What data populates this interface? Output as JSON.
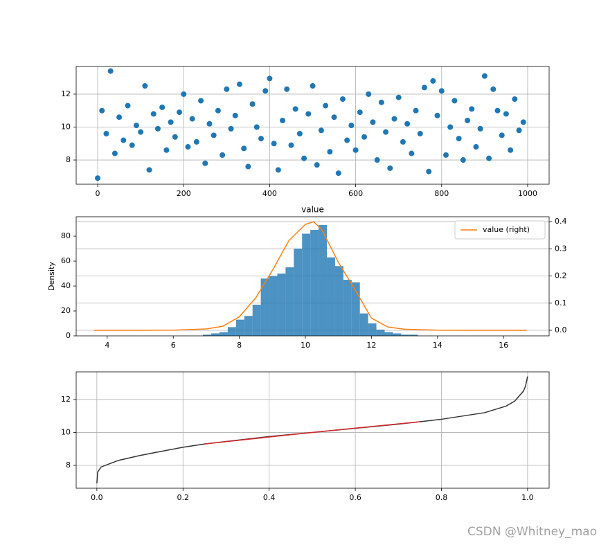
{
  "chart_data": [
    {
      "type": "scatter",
      "color": "#1f77b4",
      "grid": true,
      "x": [
        0,
        10,
        20,
        30,
        40,
        50,
        60,
        70,
        80,
        90,
        100,
        110,
        120,
        130,
        140,
        150,
        160,
        170,
        180,
        190,
        200,
        210,
        220,
        230,
        240,
        250,
        260,
        270,
        280,
        290,
        300,
        310,
        320,
        330,
        340,
        350,
        360,
        370,
        380,
        390,
        400,
        410,
        420,
        430,
        440,
        450,
        460,
        470,
        480,
        490,
        500,
        510,
        520,
        530,
        540,
        550,
        560,
        570,
        580,
        590,
        600,
        610,
        620,
        630,
        640,
        650,
        660,
        670,
        680,
        690,
        700,
        710,
        720,
        730,
        740,
        750,
        760,
        770,
        780,
        790,
        800,
        810,
        820,
        830,
        840,
        850,
        860,
        870,
        880,
        890,
        900,
        910,
        920,
        930,
        940,
        950,
        960,
        970,
        980,
        990
      ],
      "values": [
        6.9,
        11.0,
        9.6,
        13.4,
        8.4,
        10.6,
        9.2,
        11.3,
        8.9,
        10.1,
        9.7,
        12.5,
        7.4,
        10.8,
        9.9,
        11.2,
        8.6,
        10.3,
        9.4,
        10.9,
        12.0,
        8.8,
        10.5,
        9.1,
        11.6,
        7.8,
        10.2,
        9.5,
        11.0,
        8.3,
        12.3,
        9.9,
        10.7,
        12.6,
        8.7,
        7.6,
        11.4,
        10.0,
        9.3,
        12.2,
        12.95,
        9.0,
        7.4,
        10.4,
        12.3,
        8.9,
        11.1,
        9.6,
        8.1,
        10.8,
        12.5,
        7.7,
        9.8,
        11.3,
        8.5,
        10.6,
        7.2,
        11.7,
        9.2,
        10.1,
        8.6,
        10.9,
        9.4,
        12.0,
        10.3,
        8.0,
        11.5,
        9.7,
        7.5,
        10.5,
        11.8,
        9.1,
        10.2,
        8.4,
        11.0,
        9.6,
        12.4,
        7.3,
        12.8,
        10.7,
        12.2,
        8.3,
        10.0,
        11.6,
        9.3,
        8.0,
        10.4,
        11.1,
        8.8,
        9.9,
        13.1,
        8.1,
        12.3,
        11.0,
        9.5,
        10.8,
        8.6,
        11.7,
        9.8,
        10.3
      ],
      "xlim": [
        -50,
        1050
      ],
      "ylim": [
        6.53,
        13.68
      ],
      "xticks": [
        0,
        200,
        400,
        600,
        800,
        1000
      ],
      "yticks": [
        8,
        10,
        12
      ]
    },
    {
      "type": "histogram",
      "title": "value",
      "ylabel": "Density",
      "color": "#1f77b4",
      "grid": "y2",
      "legend": "upper right",
      "bins": [
        6.9,
        7.15,
        7.4,
        7.65,
        7.9,
        8.15,
        8.4,
        8.65,
        8.9,
        9.15,
        9.4,
        9.65,
        9.9,
        10.15,
        10.4,
        10.65,
        10.9,
        11.15,
        11.4,
        11.65,
        11.9,
        12.15,
        12.4,
        12.65,
        12.9,
        13.15,
        13.4
      ],
      "counts": [
        1,
        2,
        3,
        7,
        13,
        16,
        25,
        46,
        48,
        50,
        55,
        70,
        82,
        85,
        89,
        63,
        56,
        45,
        43,
        18,
        10,
        5,
        3,
        2,
        1,
        1
      ],
      "series": [
        {
          "name": "value (right)",
          "color": "#ff7f0e",
          "axis": "y2",
          "x": [
            3.6,
            5,
            6,
            7,
            7.5,
            8,
            8.5,
            9,
            9.5,
            10,
            10.25,
            10.5,
            11,
            11.5,
            12,
            12.5,
            13,
            14,
            15,
            16.7
          ],
          "values": [
            0,
            0,
            0.0005,
            0.005,
            0.015,
            0.05,
            0.12,
            0.22,
            0.33,
            0.39,
            0.4,
            0.37,
            0.25,
            0.15,
            0.045,
            0.012,
            0.004,
            0.0005,
            0,
            0
          ]
        }
      ],
      "xlim": [
        3.06,
        17.38
      ],
      "ylim": [
        0,
        95.6
      ],
      "y2lim": [
        -0.0204,
        0.418
      ],
      "xticks": [
        4,
        6,
        8,
        10,
        12,
        14,
        16
      ],
      "yticks": [
        0,
        20,
        40,
        60,
        80
      ],
      "y2ticks": [
        {
          "value": 0,
          "label": "0.0"
        },
        0.1,
        0.2,
        0.3,
        0.4
      ]
    },
    {
      "type": "line",
      "grid": true,
      "series": [
        {
          "color": "#333333",
          "x": [
            0,
            0.002,
            0.01,
            0.03,
            0.05,
            0.1,
            0.15,
            0.2,
            0.25,
            0.3,
            0.4,
            0.5,
            0.6,
            0.7,
            0.75,
            0.8,
            0.85,
            0.9,
            0.95,
            0.97,
            0.99,
            0.995,
            1.0
          ],
          "values": [
            6.9,
            7.6,
            7.9,
            8.1,
            8.3,
            8.6,
            8.85,
            9.1,
            9.3,
            9.45,
            9.75,
            10.0,
            10.25,
            10.5,
            10.65,
            10.8,
            11.0,
            11.2,
            11.6,
            11.9,
            12.5,
            12.8,
            13.4
          ]
        },
        {
          "color": "#d62728",
          "x": [
            0.25,
            0.5,
            0.75
          ],
          "values": [
            9.3,
            10.0,
            10.65
          ]
        }
      ],
      "xlim": [
        -0.048,
        1.05
      ],
      "ylim": [
        6.61,
        13.68
      ],
      "xticks": [
        {
          "value": 0,
          "label": "0.0"
        },
        0.2,
        0.4,
        0.6,
        0.8,
        {
          "value": 1,
          "label": "1.0"
        }
      ],
      "yticks": [
        8,
        10,
        12
      ]
    }
  ],
  "watermark": "CSDN @Whitney_mao"
}
